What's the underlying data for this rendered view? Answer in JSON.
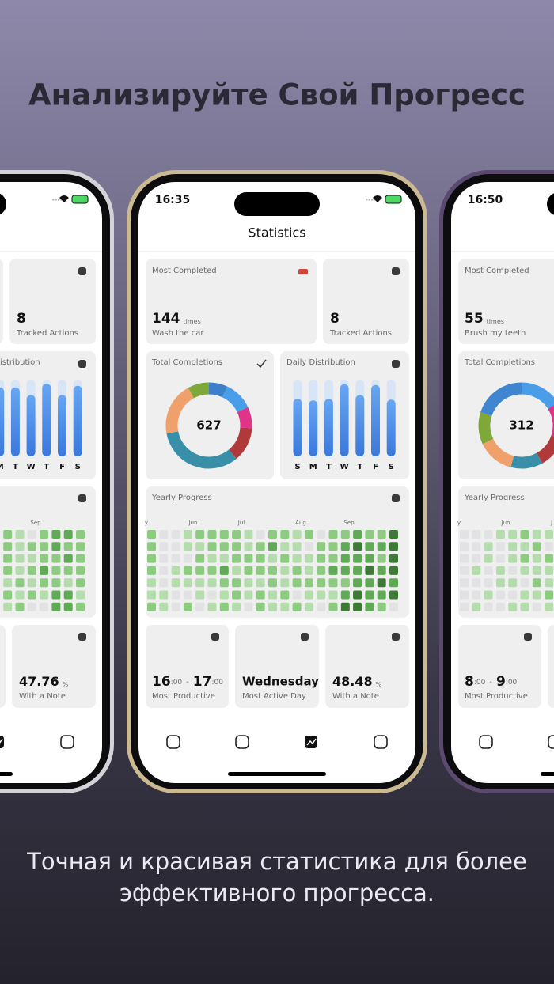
{
  "header": {
    "title": "Анализируйте Свой Прогресс"
  },
  "caption": {
    "lines": [
      "Точная и красивая статистика для более",
      "эффективного прогресса."
    ]
  },
  "left_phone": {
    "tracked": {
      "count": 8,
      "label": "Tracked Actions"
    },
    "daily": {
      "label": "istribution",
      "days": [
        "M",
        "T",
        "W",
        "T",
        "F",
        "S"
      ],
      "values": [
        0.9,
        0.9,
        0.8,
        0.95,
        0.8,
        0.92
      ]
    },
    "yearly": {
      "months": [
        "Sep"
      ],
      "levels": [
        [
          2,
          1,
          0,
          2,
          3,
          3,
          2
        ],
        [
          2,
          1,
          2,
          2,
          3,
          2,
          2
        ],
        [
          2,
          1,
          1,
          2,
          2,
          3,
          2
        ],
        [
          2,
          1,
          2,
          3,
          2,
          2,
          2
        ],
        [
          1,
          2,
          1,
          2,
          2,
          1,
          2
        ],
        [
          2,
          1,
          2,
          1,
          3,
          3,
          1
        ],
        [
          1,
          2,
          0,
          0,
          3,
          3,
          2
        ]
      ]
    },
    "note": {
      "percent": 47.76,
      "unit": "%",
      "label": "With a Note"
    }
  },
  "center_phone": {
    "time": "16:35",
    "screen_title": "Statistics",
    "most_completed": {
      "label": "Most Completed",
      "count": 144,
      "unit": "times",
      "action": "Wash the car"
    },
    "tracked": {
      "count": 8,
      "label": "Tracked Actions"
    },
    "total": {
      "label": "Total Completions",
      "count": 627,
      "segments": [
        {
          "color": "#3d7fc9",
          "value": 7
        },
        {
          "color": "#4a9de8",
          "value": 11
        },
        {
          "color": "#e0338a",
          "value": 8
        },
        {
          "color": "#b03a3a",
          "value": 13
        },
        {
          "color": "#3a8fa8",
          "value": 33
        },
        {
          "color": "#f0a06a",
          "value": 20
        },
        {
          "color": "#7fa83a",
          "value": 8
        }
      ]
    },
    "daily": {
      "label": "Daily Distribution",
      "days": [
        "S",
        "M",
        "T",
        "W",
        "T",
        "F",
        "S"
      ],
      "values": [
        0.75,
        0.73,
        0.75,
        0.94,
        0.8,
        0.93,
        0.74
      ]
    },
    "yearly": {
      "label": "Yearly Progress",
      "months": [
        "y",
        "Jun",
        "Jul",
        "Aug",
        "Sep"
      ],
      "levels": [
        [
          2,
          0,
          0,
          1,
          2,
          2,
          2,
          2,
          1,
          0,
          2,
          2,
          1,
          2,
          0,
          2,
          2,
          3,
          2,
          2,
          4
        ],
        [
          2,
          0,
          0,
          1,
          1,
          2,
          2,
          2,
          1,
          2,
          3,
          1,
          1,
          0,
          2,
          2,
          3,
          4,
          3,
          3,
          4
        ],
        [
          2,
          0,
          0,
          0,
          2,
          1,
          1,
          2,
          2,
          2,
          1,
          2,
          1,
          1,
          2,
          2,
          3,
          3,
          3,
          2,
          4
        ],
        [
          2,
          0,
          1,
          2,
          2,
          2,
          3,
          1,
          2,
          2,
          2,
          1,
          2,
          1,
          2,
          3,
          3,
          3,
          4,
          3,
          4
        ],
        [
          1,
          0,
          1,
          1,
          1,
          1,
          2,
          2,
          1,
          1,
          2,
          1,
          2,
          2,
          2,
          2,
          2,
          3,
          3,
          4,
          3
        ],
        [
          1,
          1,
          0,
          0,
          1,
          0,
          1,
          2,
          1,
          2,
          1,
          2,
          0,
          1,
          1,
          1,
          3,
          4,
          3,
          3,
          4
        ],
        [
          2,
          1,
          0,
          2,
          0,
          1,
          2,
          1,
          0,
          2,
          1,
          1,
          2,
          1,
          0,
          2,
          4,
          4,
          3,
          2,
          0
        ]
      ]
    },
    "productive": {
      "from": "16",
      "to": "17",
      "minutes": ":00",
      "separator": "-",
      "label": "Most Productive"
    },
    "active_day": {
      "day": "Wednesday",
      "label": "Most Active Day"
    },
    "note": {
      "percent": 48.48,
      "unit": "%",
      "label": "With a Note"
    }
  },
  "right_phone": {
    "time": "16:50",
    "most_completed": {
      "label": "Most Completed",
      "count": 55,
      "unit": "times",
      "action": "Brush my teeth"
    },
    "total": {
      "label": "Total Completions",
      "count": 312,
      "segments": [
        {
          "color": "#4a9de8",
          "value": 16
        },
        {
          "color": "#e0338a",
          "value": 14
        },
        {
          "color": "#b03a3a",
          "value": 12
        },
        {
          "color": "#3a8fa8",
          "value": 12
        },
        {
          "color": "#f0a06a",
          "value": 14
        },
        {
          "color": "#7fa83a",
          "value": 12
        },
        {
          "color": "#3f85cf",
          "value": 20
        }
      ]
    },
    "yearly": {
      "label": "Yearly Progress",
      "months": [
        "y",
        "Jun",
        "J"
      ],
      "levels": [
        [
          0,
          0,
          0,
          1,
          1,
          2,
          1,
          1
        ],
        [
          0,
          0,
          1,
          0,
          1,
          1,
          2,
          0
        ],
        [
          0,
          0,
          1,
          0,
          1,
          2,
          1,
          2
        ],
        [
          0,
          1,
          0,
          1,
          0,
          1,
          1,
          1
        ],
        [
          0,
          0,
          0,
          1,
          1,
          0,
          2,
          1
        ],
        [
          0,
          0,
          1,
          0,
          0,
          1,
          1,
          2
        ],
        [
          0,
          1,
          0,
          0,
          1,
          1,
          0,
          1
        ]
      ]
    },
    "productive": {
      "from": "8",
      "to": "9",
      "minutes": ":00",
      "separator": "-",
      "label": "Most Productive"
    }
  }
}
